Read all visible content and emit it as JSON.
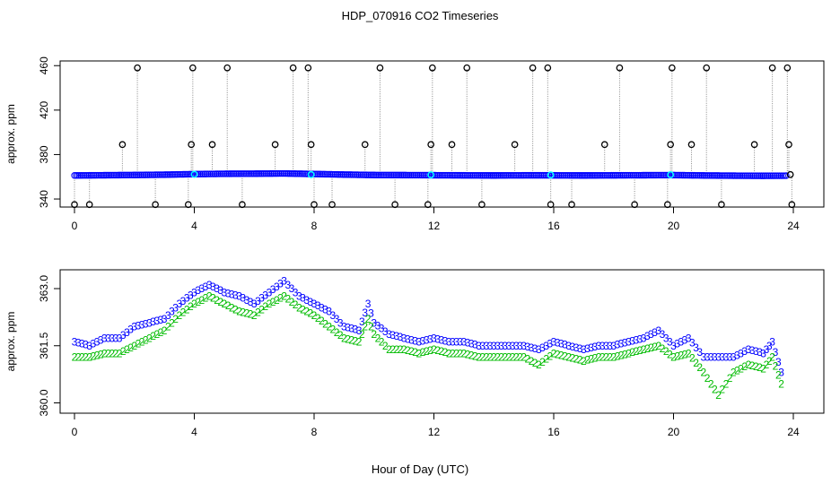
{
  "title": "HDP_070916  CO2 Timeseries",
  "xlabel": "Hour of Day (UTC)",
  "colors": {
    "axis": "#000000",
    "series_blue": "#0000ff",
    "series_cyan": "#00ffff",
    "series_green": "#00bb00",
    "stem": "#888888"
  },
  "chart_data": [
    {
      "type": "scatter",
      "ylabel": "approx. ppm",
      "xlim": [
        0,
        24
      ],
      "ylim": [
        336,
        461
      ],
      "xticks": [
        0,
        4,
        8,
        12,
        16,
        20,
        24
      ],
      "yticks": [
        340,
        380,
        420,
        460
      ],
      "baseline": [
        {
          "x": 0.0,
          "y": 361.2
        },
        {
          "x": 1.0,
          "y": 361.4
        },
        {
          "x": 2.0,
          "y": 361.6
        },
        {
          "x": 3.0,
          "y": 361.9
        },
        {
          "x": 4.0,
          "y": 362.4
        },
        {
          "x": 5.0,
          "y": 362.7
        },
        {
          "x": 6.0,
          "y": 362.8
        },
        {
          "x": 7.0,
          "y": 363.0
        },
        {
          "x": 8.0,
          "y": 362.5
        },
        {
          "x": 9.0,
          "y": 362.0
        },
        {
          "x": 10.0,
          "y": 361.6
        },
        {
          "x": 11.0,
          "y": 361.5
        },
        {
          "x": 12.0,
          "y": 361.4
        },
        {
          "x": 13.0,
          "y": 361.3
        },
        {
          "x": 14.0,
          "y": 361.2
        },
        {
          "x": 15.0,
          "y": 361.3
        },
        {
          "x": 16.0,
          "y": 361.3
        },
        {
          "x": 17.0,
          "y": 361.2
        },
        {
          "x": 18.0,
          "y": 361.3
        },
        {
          "x": 19.0,
          "y": 361.4
        },
        {
          "x": 20.0,
          "y": 361.5
        },
        {
          "x": 21.0,
          "y": 361.2
        },
        {
          "x": 22.0,
          "y": 361.0
        },
        {
          "x": 23.0,
          "y": 360.9
        },
        {
          "x": 23.8,
          "y": 361.0
        }
      ],
      "cyan_points": [
        {
          "x": 4.0,
          "y": 362.2
        },
        {
          "x": 7.9,
          "y": 362.0
        },
        {
          "x": 11.9,
          "y": 361.7
        },
        {
          "x": 15.9,
          "y": 361.6
        },
        {
          "x": 19.9,
          "y": 361.8
        }
      ],
      "spikes": [
        {
          "x": 0.0,
          "y": 335
        },
        {
          "x": 0.5,
          "y": 335
        },
        {
          "x": 1.6,
          "y": 389
        },
        {
          "x": 2.1,
          "y": 458
        },
        {
          "x": 2.7,
          "y": 335
        },
        {
          "x": 3.8,
          "y": 335
        },
        {
          "x": 3.9,
          "y": 389
        },
        {
          "x": 3.95,
          "y": 458
        },
        {
          "x": 4.6,
          "y": 389
        },
        {
          "x": 5.1,
          "y": 458
        },
        {
          "x": 5.6,
          "y": 335
        },
        {
          "x": 6.7,
          "y": 389
        },
        {
          "x": 7.3,
          "y": 458
        },
        {
          "x": 7.8,
          "y": 458
        },
        {
          "x": 7.9,
          "y": 389
        },
        {
          "x": 8.0,
          "y": 335
        },
        {
          "x": 8.6,
          "y": 335
        },
        {
          "x": 9.7,
          "y": 389
        },
        {
          "x": 10.2,
          "y": 458
        },
        {
          "x": 10.7,
          "y": 335
        },
        {
          "x": 11.8,
          "y": 335
        },
        {
          "x": 11.9,
          "y": 389
        },
        {
          "x": 11.95,
          "y": 458
        },
        {
          "x": 12.6,
          "y": 389
        },
        {
          "x": 13.1,
          "y": 458
        },
        {
          "x": 13.6,
          "y": 335
        },
        {
          "x": 14.7,
          "y": 389
        },
        {
          "x": 15.3,
          "y": 458
        },
        {
          "x": 15.8,
          "y": 458
        },
        {
          "x": 15.9,
          "y": 335
        },
        {
          "x": 16.6,
          "y": 335
        },
        {
          "x": 17.7,
          "y": 389
        },
        {
          "x": 18.2,
          "y": 458
        },
        {
          "x": 18.7,
          "y": 335
        },
        {
          "x": 19.8,
          "y": 335
        },
        {
          "x": 19.9,
          "y": 389
        },
        {
          "x": 19.95,
          "y": 458
        },
        {
          "x": 20.6,
          "y": 389
        },
        {
          "x": 21.1,
          "y": 458
        },
        {
          "x": 21.6,
          "y": 335
        },
        {
          "x": 22.7,
          "y": 389
        },
        {
          "x": 23.3,
          "y": 458
        },
        {
          "x": 23.8,
          "y": 458
        },
        {
          "x": 23.85,
          "y": 389
        },
        {
          "x": 23.9,
          "y": 362
        },
        {
          "x": 23.95,
          "y": 335
        }
      ]
    },
    {
      "type": "scatter",
      "ylabel": "approx. ppm",
      "xlim": [
        0,
        24
      ],
      "ylim": [
        359.8,
        363.4
      ],
      "xticks": [
        0,
        4,
        8,
        12,
        16,
        20,
        24
      ],
      "yticks": [
        360.0,
        361.5,
        363.0
      ],
      "yticklabels": [
        "360.0",
        "361.5",
        "363.0"
      ],
      "series": [
        {
          "name": "3",
          "points": [
            {
              "x": 0.0,
              "y": 361.6
            },
            {
              "x": 0.5,
              "y": 361.5
            },
            {
              "x": 1.0,
              "y": 361.7
            },
            {
              "x": 1.5,
              "y": 361.7
            },
            {
              "x": 2.0,
              "y": 362.0
            },
            {
              "x": 2.5,
              "y": 362.1
            },
            {
              "x": 3.0,
              "y": 362.2
            },
            {
              "x": 3.5,
              "y": 362.6
            },
            {
              "x": 4.0,
              "y": 362.9
            },
            {
              "x": 4.5,
              "y": 363.1
            },
            {
              "x": 5.0,
              "y": 362.9
            },
            {
              "x": 5.5,
              "y": 362.8
            },
            {
              "x": 6.0,
              "y": 362.6
            },
            {
              "x": 6.5,
              "y": 362.9
            },
            {
              "x": 7.0,
              "y": 363.2
            },
            {
              "x": 7.5,
              "y": 362.8
            },
            {
              "x": 8.0,
              "y": 362.6
            },
            {
              "x": 8.5,
              "y": 362.4
            },
            {
              "x": 9.0,
              "y": 362.0
            },
            {
              "x": 9.5,
              "y": 361.9
            },
            {
              "x": 9.8,
              "y": 362.6
            },
            {
              "x": 10.0,
              "y": 362.1
            },
            {
              "x": 10.5,
              "y": 361.8
            },
            {
              "x": 11.0,
              "y": 361.7
            },
            {
              "x": 11.5,
              "y": 361.6
            },
            {
              "x": 12.0,
              "y": 361.7
            },
            {
              "x": 12.5,
              "y": 361.6
            },
            {
              "x": 13.0,
              "y": 361.6
            },
            {
              "x": 13.5,
              "y": 361.5
            },
            {
              "x": 14.0,
              "y": 361.5
            },
            {
              "x": 14.5,
              "y": 361.5
            },
            {
              "x": 15.0,
              "y": 361.5
            },
            {
              "x": 15.5,
              "y": 361.4
            },
            {
              "x": 16.0,
              "y": 361.6
            },
            {
              "x": 16.5,
              "y": 361.5
            },
            {
              "x": 17.0,
              "y": 361.4
            },
            {
              "x": 17.5,
              "y": 361.5
            },
            {
              "x": 18.0,
              "y": 361.5
            },
            {
              "x": 18.5,
              "y": 361.6
            },
            {
              "x": 19.0,
              "y": 361.7
            },
            {
              "x": 19.5,
              "y": 361.9
            },
            {
              "x": 20.0,
              "y": 361.5
            },
            {
              "x": 20.5,
              "y": 361.7
            },
            {
              "x": 21.0,
              "y": 361.2
            },
            {
              "x": 21.5,
              "y": 361.2
            },
            {
              "x": 22.0,
              "y": 361.2
            },
            {
              "x": 22.5,
              "y": 361.4
            },
            {
              "x": 23.0,
              "y": 361.3
            },
            {
              "x": 23.3,
              "y": 361.6
            },
            {
              "x": 23.6,
              "y": 360.8
            }
          ]
        },
        {
          "name": "2",
          "points": [
            {
              "x": 0.0,
              "y": 361.2
            },
            {
              "x": 0.5,
              "y": 361.2
            },
            {
              "x": 1.0,
              "y": 361.3
            },
            {
              "x": 1.5,
              "y": 361.3
            },
            {
              "x": 2.0,
              "y": 361.5
            },
            {
              "x": 2.5,
              "y": 361.7
            },
            {
              "x": 3.0,
              "y": 361.9
            },
            {
              "x": 3.5,
              "y": 362.3
            },
            {
              "x": 4.0,
              "y": 362.6
            },
            {
              "x": 4.5,
              "y": 362.8
            },
            {
              "x": 5.0,
              "y": 362.6
            },
            {
              "x": 5.5,
              "y": 362.4
            },
            {
              "x": 6.0,
              "y": 362.3
            },
            {
              "x": 6.5,
              "y": 362.6
            },
            {
              "x": 7.0,
              "y": 362.8
            },
            {
              "x": 7.5,
              "y": 362.5
            },
            {
              "x": 8.0,
              "y": 362.3
            },
            {
              "x": 8.5,
              "y": 362.0
            },
            {
              "x": 9.0,
              "y": 361.7
            },
            {
              "x": 9.5,
              "y": 361.6
            },
            {
              "x": 9.8,
              "y": 362.2
            },
            {
              "x": 10.0,
              "y": 361.8
            },
            {
              "x": 10.5,
              "y": 361.4
            },
            {
              "x": 11.0,
              "y": 361.4
            },
            {
              "x": 11.5,
              "y": 361.3
            },
            {
              "x": 12.0,
              "y": 361.4
            },
            {
              "x": 12.5,
              "y": 361.3
            },
            {
              "x": 13.0,
              "y": 361.3
            },
            {
              "x": 13.5,
              "y": 361.2
            },
            {
              "x": 14.0,
              "y": 361.2
            },
            {
              "x": 14.5,
              "y": 361.2
            },
            {
              "x": 15.0,
              "y": 361.2
            },
            {
              "x": 15.5,
              "y": 361.0
            },
            {
              "x": 16.0,
              "y": 361.3
            },
            {
              "x": 16.5,
              "y": 361.2
            },
            {
              "x": 17.0,
              "y": 361.1
            },
            {
              "x": 17.5,
              "y": 361.2
            },
            {
              "x": 18.0,
              "y": 361.2
            },
            {
              "x": 18.5,
              "y": 361.3
            },
            {
              "x": 19.0,
              "y": 361.4
            },
            {
              "x": 19.5,
              "y": 361.5
            },
            {
              "x": 20.0,
              "y": 361.2
            },
            {
              "x": 20.5,
              "y": 361.3
            },
            {
              "x": 21.0,
              "y": 360.8
            },
            {
              "x": 21.5,
              "y": 360.2
            },
            {
              "x": 22.0,
              "y": 360.8
            },
            {
              "x": 22.5,
              "y": 361.0
            },
            {
              "x": 23.0,
              "y": 360.9
            },
            {
              "x": 23.3,
              "y": 361.2
            },
            {
              "x": 23.6,
              "y": 360.5
            }
          ]
        }
      ]
    }
  ]
}
